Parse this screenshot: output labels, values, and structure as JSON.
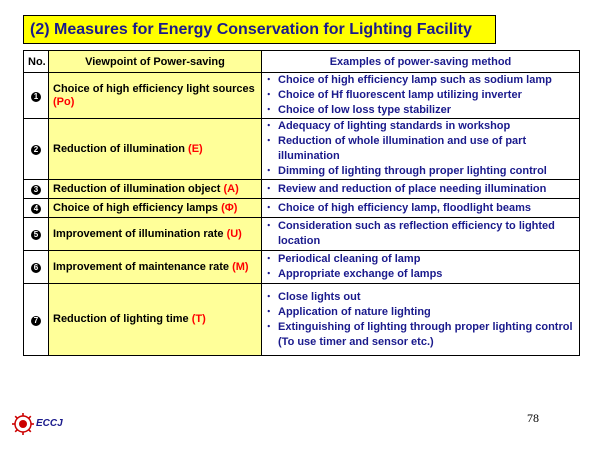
{
  "title": "(2) Measures for Energy Conservation for Lighting Facility",
  "table": {
    "headers": {
      "no": "No.",
      "viewpoint": "Viewpoint of Power-saving",
      "examples": "Examples of power-saving  method"
    },
    "rows": [
      {
        "num": "1",
        "viewpoint": "Choice of high efficiency light sources ",
        "code": "(Po)",
        "examples": [
          "Choice of high efficiency lamp  such as sodium lamp",
          "Choice of Hf fluorescent lamp utilizing inverter",
          "Choice of low loss type stabilizer"
        ]
      },
      {
        "num": "2",
        "viewpoint": "Reduction of illumination ",
        "code": "(E)",
        "examples": [
          "Adequacy of lighting standards in workshop",
          "Reduction of whole illumination and use of  part illumination",
          "Dimming of lighting through proper lighting control"
        ]
      },
      {
        "num": "3",
        "viewpoint": "Reduction of illumination object ",
        "code": "(A)",
        "examples": [
          "Review and reduction of  place needing illumination"
        ]
      },
      {
        "num": "4",
        "viewpoint": "Choice of high efficiency lamps ",
        "code": "(Φ)",
        "examples": [
          "Choice of high efficiency lamp, floodlight  beams"
        ]
      },
      {
        "num": "5",
        "viewpoint": "Improvement of illumination rate ",
        "code": "(U)",
        "examples": [
          "Consideration such as reflection efficiency to lighted location"
        ]
      },
      {
        "num": "6",
        "viewpoint": "Improvement of maintenance rate ",
        "code": "(M)",
        "examples": [
          "Periodical cleaning of lamp",
          "Appropriate exchange of lamps"
        ]
      },
      {
        "num": "7",
        "viewpoint": "Reduction of lighting time ",
        "code": "(T)",
        "examples": [
          "Close lights out",
          "Application of nature lighting",
          "Extinguishing of lighting through proper lighting control (To use timer and sensor etc.)"
        ]
      }
    ],
    "bullet": "･"
  },
  "footer": {
    "logo_text": "ECCJ",
    "page_number": "78"
  },
  "colors": {
    "title_bg": "#ffff00",
    "viewpoint_bg": "#ffff99",
    "text_blue": "#1a1a8c",
    "code_red": "#ff0000"
  }
}
